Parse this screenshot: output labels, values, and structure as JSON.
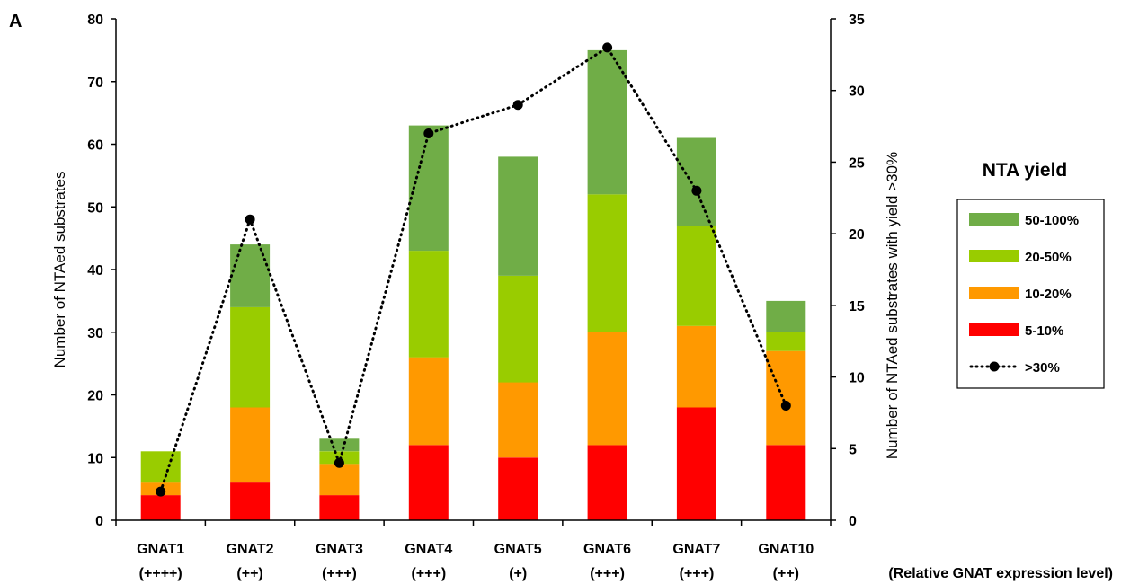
{
  "panel_label": "A",
  "chart_data": {
    "type": "bar",
    "stacked": true,
    "categories": [
      "GNAT1",
      "GNAT2",
      "GNAT3",
      "GNAT4",
      "GNAT5",
      "GNAT6",
      "GNAT7",
      "GNAT10"
    ],
    "category_sublabels": [
      "(++++)",
      "(++)",
      "(+++)",
      "(+++)",
      "(+)",
      "(+++)",
      "(+++)",
      "(++)"
    ],
    "x_annotation": "(Relative GNAT expression level)",
    "ylabel": "Number of NTAed substrates",
    "ylim": [
      0,
      80
    ],
    "yticks": [
      0,
      10,
      20,
      30,
      40,
      50,
      60,
      70,
      80
    ],
    "y2label": "Number of NTAed substrates with yield >30%",
    "y2lim": [
      0,
      35
    ],
    "y2ticks": [
      0,
      5,
      10,
      15,
      20,
      25,
      30,
      35
    ],
    "grid": false,
    "legend_title": "NTA yield",
    "legend_position": "right",
    "series": [
      {
        "name": "5-10%",
        "color": "#ff0000",
        "values": [
          4,
          6,
          4,
          12,
          10,
          12,
          18,
          12
        ]
      },
      {
        "name": "10-20%",
        "color": "#ff9900",
        "values": [
          2,
          12,
          5,
          14,
          12,
          18,
          13,
          15
        ]
      },
      {
        "name": "20-50%",
        "color": "#99cc00",
        "values": [
          5,
          16,
          2,
          17,
          17,
          22,
          16,
          3
        ]
      },
      {
        "name": "50-100%",
        "color": "#70ad47",
        "values": [
          0,
          10,
          2,
          20,
          19,
          23,
          14,
          5
        ]
      }
    ],
    "line_series": {
      "name": ">30%",
      "axis": "right",
      "style": "dotted",
      "color": "#000000",
      "values": [
        2,
        21,
        4,
        27,
        29,
        33,
        23,
        8
      ]
    },
    "legend_order": [
      "50-100%",
      "20-50%",
      "10-20%",
      "5-10%",
      ">30%"
    ]
  }
}
